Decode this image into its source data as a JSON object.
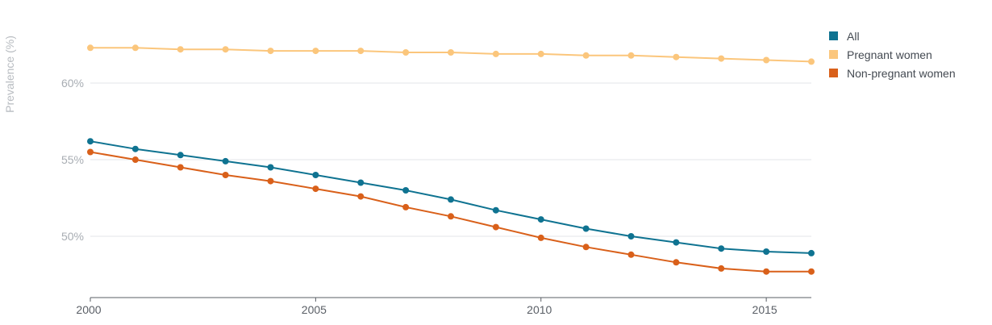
{
  "chart_data": {
    "type": "line",
    "title": "",
    "xlabel": "",
    "ylabel": "Prevalence (%)",
    "x": [
      2000,
      2001,
      2002,
      2003,
      2004,
      2005,
      2006,
      2007,
      2008,
      2009,
      2010,
      2011,
      2012,
      2013,
      2014,
      2015,
      2016
    ],
    "x_ticks": [
      2000,
      2005,
      2010,
      2015
    ],
    "x_tick_labels": [
      "2000",
      "2005",
      "2010",
      "2015"
    ],
    "y_ticks": [
      50,
      55,
      60
    ],
    "y_tick_labels": [
      "50%",
      "55%",
      "60%"
    ],
    "xlim": [
      2000,
      2016
    ],
    "ylim": [
      46,
      64
    ],
    "grid": "horizontal",
    "legend_position": "top-right",
    "series": [
      {
        "name": "All",
        "color": "#0f7391",
        "values": [
          56.2,
          55.7,
          55.3,
          54.9,
          54.5,
          54.0,
          53.5,
          53.0,
          52.4,
          51.7,
          51.1,
          50.5,
          50.0,
          49.6,
          49.2,
          49.0,
          48.9
        ]
      },
      {
        "name": "Pregnant women",
        "color": "#fbc67c",
        "values": [
          62.3,
          62.3,
          62.2,
          62.2,
          62.1,
          62.1,
          62.1,
          62.0,
          62.0,
          61.9,
          61.9,
          61.8,
          61.8,
          61.7,
          61.6,
          61.5,
          61.4
        ]
      },
      {
        "name": "Non-pregnant women",
        "color": "#d9601a",
        "values": [
          55.5,
          55.0,
          54.5,
          54.0,
          53.6,
          53.1,
          52.6,
          51.9,
          51.3,
          50.6,
          49.9,
          49.3,
          48.8,
          48.3,
          47.9,
          47.7,
          47.7
        ]
      }
    ]
  }
}
